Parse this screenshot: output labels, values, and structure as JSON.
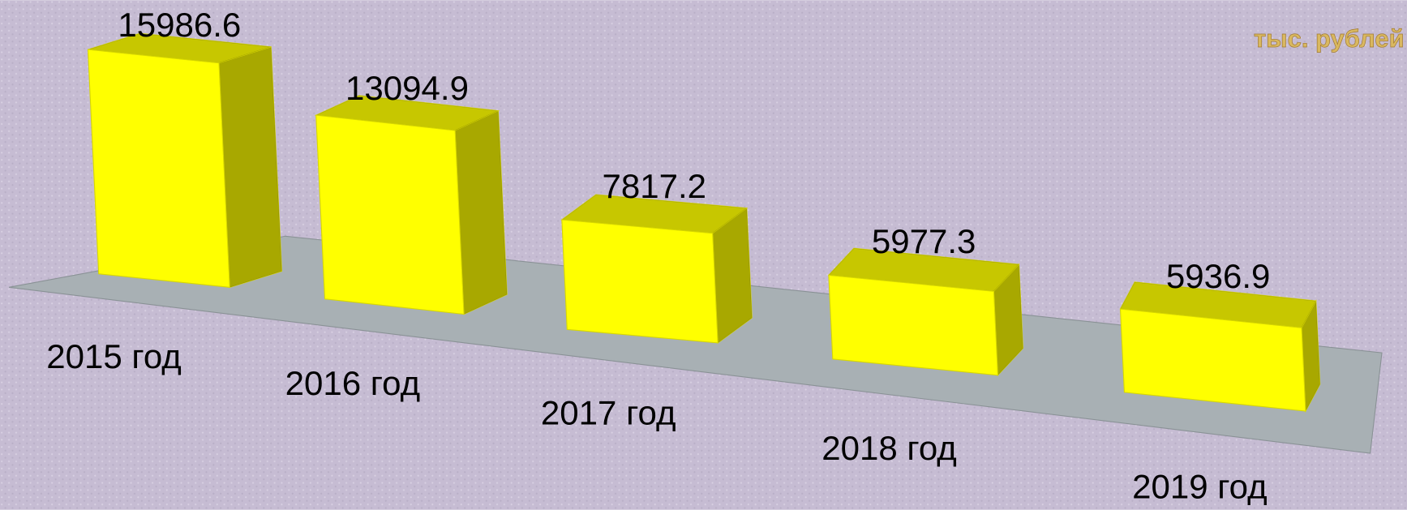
{
  "chart_data": {
    "type": "bar",
    "unit_label": "тыс. рублей",
    "categories": [
      "2015 год",
      "2016 год",
      "2017 год",
      "2018 год",
      "2019 год"
    ],
    "values": [
      15986.6,
      13094.9,
      7817.2,
      5977.3,
      5936.9
    ],
    "color": "#ffff00"
  }
}
